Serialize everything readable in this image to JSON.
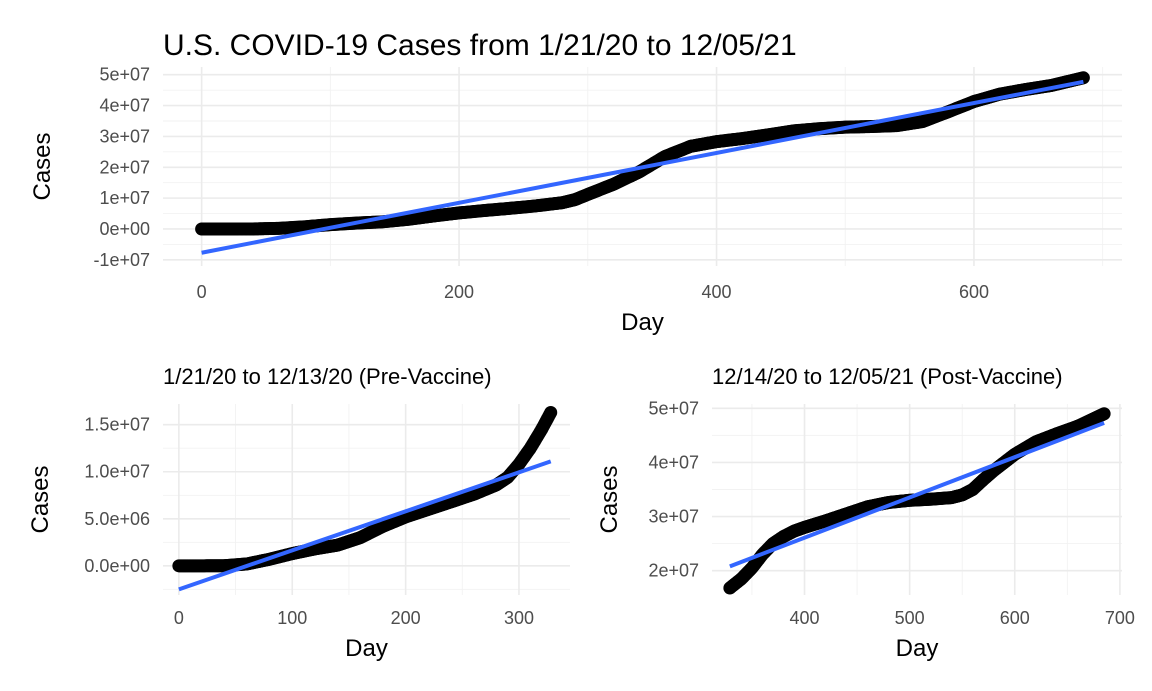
{
  "chart_data": [
    {
      "id": "full",
      "type": "line",
      "title": "U.S. COVID-19 Cases from 1/21/20 to 12/05/21",
      "xlabel": "Day",
      "ylabel": "Cases",
      "xlim": [
        -30,
        715
      ],
      "ylim": [
        -12000000,
        52500000
      ],
      "x_ticks": [
        0,
        200,
        400,
        600
      ],
      "x_tick_labels": [
        "0",
        "200",
        "400",
        "600"
      ],
      "y_ticks": [
        -10000000,
        0,
        10000000,
        20000000,
        30000000,
        40000000,
        50000000
      ],
      "y_tick_labels": [
        "-1e+07",
        "0e+00",
        "1e+07",
        "2e+07",
        "3e+07",
        "4e+07",
        "5e+07"
      ],
      "grid": true,
      "series": [
        {
          "kind": "points",
          "color": "#000000",
          "x": [
            0,
            20,
            40,
            60,
            80,
            100,
            120,
            140,
            160,
            180,
            200,
            220,
            240,
            260,
            280,
            290,
            300,
            320,
            340,
            360,
            380,
            400,
            420,
            440,
            460,
            480,
            500,
            520,
            540,
            560,
            580,
            600,
            620,
            640,
            660,
            685
          ],
          "y": [
            0,
            0,
            10000,
            200000,
            700000,
            1400000,
            1900000,
            2300000,
            3100000,
            4200000,
            5200000,
            6000000,
            6700000,
            7500000,
            8500000,
            9500000,
            11200000,
            14500000,
            18500000,
            23500000,
            26800000,
            28300000,
            29300000,
            30500000,
            31800000,
            32500000,
            33000000,
            33200000,
            33500000,
            34800000,
            38000000,
            41300000,
            43700000,
            45200000,
            46500000,
            49000000
          ]
        },
        {
          "kind": "fit",
          "color": "#3366ff",
          "x": [
            0,
            685
          ],
          "y": [
            -7700000,
            47700000
          ]
        }
      ]
    },
    {
      "id": "pre",
      "type": "line",
      "title": "1/21/20 to 12/13/20 (Pre-Vaccine)",
      "xlabel": "Day",
      "ylabel": "Cases",
      "xlim": [
        -14,
        345
      ],
      "ylim": [
        -3100000,
        17200000
      ],
      "x_ticks": [
        0,
        100,
        200,
        300
      ],
      "x_tick_labels": [
        "0",
        "100",
        "200",
        "300"
      ],
      "y_ticks": [
        0,
        5000000,
        10000000,
        15000000
      ],
      "y_tick_labels": [
        "0.0e+00",
        "5.0e+06",
        "1.0e+07",
        "1.5e+07"
      ],
      "grid": true,
      "series": [
        {
          "kind": "points",
          "color": "#000000",
          "x": [
            0,
            20,
            40,
            60,
            80,
            100,
            120,
            140,
            160,
            180,
            200,
            220,
            240,
            260,
            280,
            290,
            300,
            310,
            320,
            328
          ],
          "y": [
            0,
            0,
            10000,
            200000,
            700000,
            1300000,
            1800000,
            2200000,
            3000000,
            4200000,
            5200000,
            6000000,
            6800000,
            7600000,
            8600000,
            9400000,
            10800000,
            12500000,
            14500000,
            16300000
          ]
        },
        {
          "kind": "fit",
          "color": "#3366ff",
          "x": [
            0,
            328
          ],
          "y": [
            -2500000,
            11100000
          ]
        }
      ]
    },
    {
      "id": "post",
      "type": "line",
      "title": "12/14/20 to 12/05/21 (Post-Vaccine)",
      "xlabel": "Day",
      "ylabel": "Cases",
      "xlim": [
        312,
        702
      ],
      "ylim": [
        15500000,
        50800000
      ],
      "x_ticks": [
        400,
        500,
        600,
        700
      ],
      "x_tick_labels": [
        "400",
        "500",
        "600",
        "700"
      ],
      "y_ticks": [
        20000000,
        30000000,
        40000000,
        50000000
      ],
      "y_tick_labels": [
        "2e+07",
        "3e+07",
        "4e+07",
        "5e+07"
      ],
      "grid": true,
      "series": [
        {
          "kind": "points",
          "color": "#000000",
          "x": [
            329,
            340,
            350,
            360,
            370,
            380,
            390,
            400,
            420,
            440,
            460,
            480,
            500,
            520,
            540,
            550,
            560,
            570,
            580,
            590,
            600,
            620,
            640,
            660,
            685
          ],
          "y": [
            16800000,
            18500000,
            20500000,
            23000000,
            25000000,
            26300000,
            27300000,
            28000000,
            29200000,
            30500000,
            31800000,
            32600000,
            33000000,
            33200000,
            33500000,
            34000000,
            35000000,
            36800000,
            38500000,
            40000000,
            41500000,
            43800000,
            45300000,
            46700000,
            49000000
          ]
        },
        {
          "kind": "fit",
          "color": "#3366ff",
          "x": [
            329,
            685
          ],
          "y": [
            20800000,
            47300000
          ]
        }
      ]
    }
  ]
}
